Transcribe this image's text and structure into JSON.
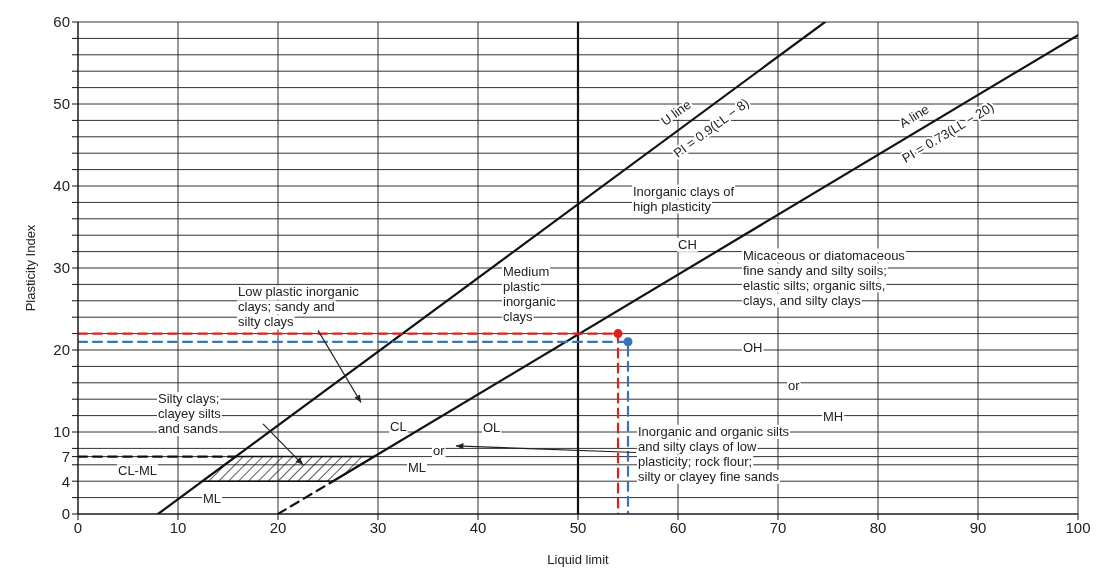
{
  "chart_data": {
    "type": "line",
    "xlabel": "Liquid limit",
    "ylabel": "Plasticity Index",
    "xlim": [
      0,
      100
    ],
    "ylim": [
      0,
      60
    ],
    "xticks": [
      0,
      10,
      20,
      30,
      40,
      50,
      60,
      70,
      80,
      90,
      100
    ],
    "yticks": [
      0,
      {
        "value": 2,
        "label": null
      },
      4,
      {
        "value": 6,
        "label": null
      },
      7,
      {
        "value": 8,
        "label": null
      },
      10,
      {
        "value": 12,
        "label": null
      },
      {
        "value": 14,
        "label": null
      },
      {
        "value": 16,
        "label": null
      },
      {
        "value": 18,
        "label": null
      },
      20,
      {
        "value": 22,
        "label": null
      },
      {
        "value": 24,
        "label": null
      },
      {
        "value": 26,
        "label": null
      },
      {
        "value": 28,
        "label": null
      },
      30,
      {
        "value": 32,
        "label": null
      },
      {
        "value": 34,
        "label": null
      },
      {
        "value": 36,
        "label": null
      },
      {
        "value": 38,
        "label": null
      },
      40,
      {
        "value": 42,
        "label": null
      },
      {
        "value": 44,
        "label": null
      },
      {
        "value": 46,
        "label": null
      },
      {
        "value": 48,
        "label": null
      },
      50,
      {
        "value": 52,
        "label": null
      },
      {
        "value": 54,
        "label": null
      },
      {
        "value": 56,
        "label": null
      },
      {
        "value": 58,
        "label": null
      },
      60
    ],
    "grid": true,
    "series": [
      {
        "name": "U line\nPI = 0.9(LL − 8)",
        "color": "#111111",
        "line_style": "solid",
        "x": [
          8,
          74.7
        ],
        "values": [
          0,
          60
        ]
      },
      {
        "name": "A line\nPI = 0.73(LL − 20)",
        "color": "#111111",
        "line_style": "solid",
        "x": [
          25.5,
          100
        ],
        "values": [
          4,
          58.4
        ]
      },
      {
        "color": "#111111",
        "line_style": "dashed",
        "x": [
          20,
          25.5
        ],
        "values": [
          0,
          4
        ]
      },
      {
        "color": "#111111",
        "line_style": "dashed",
        "x": [
          0,
          15.8
        ],
        "values": [
          7,
          7
        ]
      },
      {
        "type": "area",
        "color": "#111111",
        "x": [
          12.4,
          25.5,
          29.6,
          15.8,
          12.4
        ],
        "values": [
          4,
          4,
          7,
          7,
          4
        ]
      },
      {
        "color": "#e02020",
        "line_style": "dashed",
        "x": [
          0,
          54,
          54
        ],
        "values": [
          22,
          22,
          0
        ]
      },
      {
        "color": "#3a72b8",
        "line_style": "dashed",
        "x": [
          0,
          55,
          55
        ],
        "values": [
          21,
          21,
          0
        ]
      },
      {
        "type": "scatter",
        "color": "#e02020",
        "marker": "circle",
        "x": [
          54
        ],
        "values": [
          22
        ]
      },
      {
        "type": "scatter",
        "color": "#3a72b8",
        "marker": "circle",
        "x": [
          55
        ],
        "values": [
          21
        ]
      }
    ],
    "ref_lines": [
      {
        "axis": "x",
        "value": 50,
        "color": "#111111",
        "line_style": "solid"
      }
    ],
    "annotations": [
      "Inorganic clays of\nhigh plasticity",
      "CH",
      "Micaceous or diatomaceous\nfine sandy and silty soils;\nelastic silts; organic silts,\nclays, and silty clays",
      "OH",
      "or",
      "MH",
      "Medium\nplastic\ninorganic\nclays",
      "Low plastic inorganic\nclays; sandy and\nsilty clays",
      "Silty clays;\nclayey silts\nand sands",
      "CL-ML",
      "ML",
      "CL",
      "OL",
      "or",
      "ML",
      "Inorganic and organic silts\nand silty clays of low\nplasticity; rock flour;\nsilty or clayey fine sands"
    ]
  }
}
